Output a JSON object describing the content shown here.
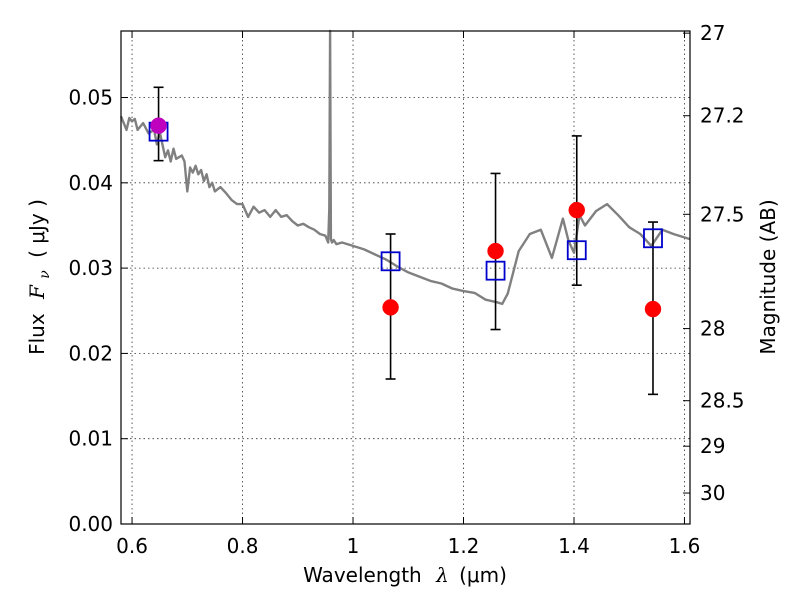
{
  "chart_data": {
    "type": "scatter",
    "xlabel": "Wavelength",
    "xlabel_symbol": "λ",
    "xlabel_unit": "(μm)",
    "ylabel": "Flux",
    "ylabel_symbol": "F",
    "ylabel_symbol_sub": "ν",
    "ylabel_unit": "( μJy )",
    "ylabel_right": "Magnitude (AB)",
    "xlim": [
      0.58,
      1.61
    ],
    "ylim": [
      0.0,
      0.0578
    ],
    "grid": true,
    "x_ticks": [
      {
        "value": 0.6,
        "label": "0.6"
      },
      {
        "value": 0.8,
        "label": "0.8"
      },
      {
        "value": 1.0,
        "label": "1"
      },
      {
        "value": 1.2,
        "label": "1.2"
      },
      {
        "value": 1.4,
        "label": "1.4"
      },
      {
        "value": 1.6,
        "label": "1.6"
      }
    ],
    "y_ticks": [
      {
        "value": 0.0,
        "label": "0.00"
      },
      {
        "value": 0.01,
        "label": "0.01"
      },
      {
        "value": 0.02,
        "label": "0.02"
      },
      {
        "value": 0.03,
        "label": "0.03"
      },
      {
        "value": 0.04,
        "label": "0.04"
      },
      {
        "value": 0.05,
        "label": "0.05"
      }
    ],
    "right_ticks": [
      {
        "value": 27,
        "label": "27"
      },
      {
        "value": 27.2,
        "label": "27.2"
      },
      {
        "value": 27.5,
        "label": "27.5"
      },
      {
        "value": 28,
        "label": "28"
      },
      {
        "value": 28.5,
        "label": "28.5"
      },
      {
        "value": 29,
        "label": "29"
      },
      {
        "value": 30,
        "label": "30"
      }
    ],
    "model_spectrum": {
      "color": "#808080",
      "x": [
        0.58,
        0.59,
        0.595,
        0.6,
        0.605,
        0.61,
        0.62,
        0.63,
        0.64,
        0.645,
        0.65,
        0.66,
        0.665,
        0.67,
        0.675,
        0.68,
        0.685,
        0.69,
        0.695,
        0.7,
        0.705,
        0.71,
        0.715,
        0.72,
        0.725,
        0.73,
        0.735,
        0.74,
        0.745,
        0.75,
        0.76,
        0.77,
        0.78,
        0.79,
        0.8,
        0.81,
        0.82,
        0.83,
        0.84,
        0.85,
        0.86,
        0.87,
        0.88,
        0.89,
        0.9,
        0.91,
        0.92,
        0.93,
        0.94,
        0.95,
        0.955,
        0.957,
        0.958,
        0.9585,
        0.96,
        0.962,
        0.965,
        0.97,
        0.98,
        1.0,
        1.02,
        1.04,
        1.06,
        1.08,
        1.1,
        1.12,
        1.14,
        1.16,
        1.18,
        1.2,
        1.22,
        1.24,
        1.26,
        1.27,
        1.28,
        1.29,
        1.3,
        1.32,
        1.34,
        1.36,
        1.37,
        1.38,
        1.39,
        1.4,
        1.41,
        1.42,
        1.44,
        1.46,
        1.48,
        1.5,
        1.52,
        1.54,
        1.56,
        1.58,
        1.61
      ],
      "y": [
        0.0478,
        0.0462,
        0.0476,
        0.0472,
        0.0475,
        0.0462,
        0.047,
        0.0458,
        0.0462,
        0.0445,
        0.046,
        0.043,
        0.0438,
        0.0425,
        0.044,
        0.0428,
        0.043,
        0.0432,
        0.0425,
        0.039,
        0.0418,
        0.0412,
        0.042,
        0.041,
        0.0415,
        0.0402,
        0.041,
        0.0395,
        0.04,
        0.039,
        0.0395,
        0.0388,
        0.038,
        0.0375,
        0.0375,
        0.036,
        0.0372,
        0.0365,
        0.0368,
        0.036,
        0.0368,
        0.036,
        0.0362,
        0.0355,
        0.035,
        0.0352,
        0.0348,
        0.0345,
        0.034,
        0.0338,
        0.033,
        0.037,
        0.05,
        0.0578,
        0.0334,
        0.033,
        0.0333,
        0.0328,
        0.033,
        0.0326,
        0.0322,
        0.0316,
        0.031,
        0.0302,
        0.0295,
        0.029,
        0.0285,
        0.0282,
        0.0276,
        0.0273,
        0.0271,
        0.0263,
        0.026,
        0.0258,
        0.027,
        0.0295,
        0.032,
        0.034,
        0.0345,
        0.0312,
        0.0335,
        0.0358,
        0.0332,
        0.0318,
        0.0362,
        0.035,
        0.0367,
        0.0375,
        0.0362,
        0.0348,
        0.034,
        0.0326,
        0.0345,
        0.034,
        0.0334
      ]
    },
    "observed": {
      "color": "#ff0000",
      "points": [
        {
          "x": 0.648,
          "y": 0.0467,
          "yerr_low": 0.0426,
          "yerr_high": 0.0512
        },
        {
          "x": 1.068,
          "y": 0.0254,
          "yerr_low": 0.017,
          "yerr_high": 0.034
        },
        {
          "x": 1.258,
          "y": 0.032,
          "yerr_low": 0.0228,
          "yerr_high": 0.0411
        },
        {
          "x": 1.405,
          "y": 0.0368,
          "yerr_low": 0.028,
          "yerr_high": 0.0455
        },
        {
          "x": 1.543,
          "y": 0.0252,
          "yerr_low": 0.0152,
          "yerr_high": 0.0354
        }
      ]
    },
    "model_photometry": {
      "color": "#0000cc",
      "points": [
        {
          "x": 0.648,
          "y": 0.046
        },
        {
          "x": 1.068,
          "y": 0.0308
        },
        {
          "x": 1.258,
          "y": 0.0297
        },
        {
          "x": 1.405,
          "y": 0.0321
        },
        {
          "x": 1.543,
          "y": 0.0335
        }
      ]
    },
    "overlap_highlight_color": "#bf00bf"
  }
}
